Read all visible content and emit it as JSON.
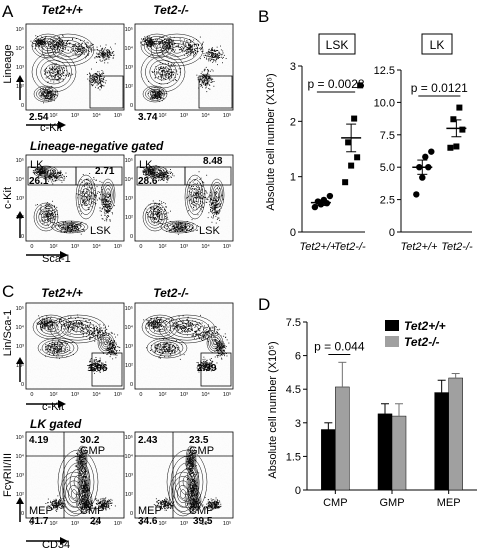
{
  "panels": {
    "a": "A",
    "b": "B",
    "c": "C",
    "d": "D"
  },
  "genotype_wt": "Tet2+/+",
  "genotype_ko": "Tet2-/-",
  "facs_a": {
    "top_ylabel": "Lineage",
    "top_xlabel": "c-Kit",
    "top_pct_wt": "2.54",
    "top_pct_ko": "3.74",
    "subtitle": "Lineage-negative gated",
    "bot_ylabel": "c-Kit",
    "bot_xlabel": "Sca-1",
    "lk_label": "LK",
    "lsk_label": "LSK",
    "lk_pct_wt": "26.1",
    "lsk_pct_wt": "2.71",
    "lk_pct_ko": "28.6",
    "lsk_pct_ko": "8.48"
  },
  "facs_c": {
    "top_ylabel": "Lin/Sca-1",
    "top_xlabel": "c-Kit",
    "top_pct_wt": "1.96",
    "top_pct_ko": "2.39",
    "subtitle": "LK gated",
    "bot_ylabel": "FcγRII/III",
    "bot_xlabel": "CD34",
    "gmp": "GMP",
    "cmp": "CMP",
    "mep": "MEP",
    "wt": {
      "ul": "4.19",
      "ur": "30.2",
      "ll": "41.7",
      "lr": "24"
    },
    "ko": {
      "ul": "2.43",
      "ur": "23.5",
      "ll": "34.6",
      "lr": "39.5"
    }
  },
  "log_ticks": [
    "0",
    "10²",
    "10³",
    "10⁴",
    "10⁵"
  ],
  "chart_data": [
    {
      "type": "scatter",
      "title": "LSK",
      "ylabel": "Absolute cell number (X10⁵)",
      "categories": [
        "Tet2+/+",
        "Tet2-/-"
      ],
      "ylim": [
        0,
        3
      ],
      "yticks": [
        "0",
        "1",
        "2",
        "3"
      ],
      "pvalue": "p = 0.0028",
      "groups": [
        {
          "name": "Tet2+/+",
          "marker": "circle",
          "values": [
            0.45,
            0.5,
            0.52,
            0.55,
            0.58,
            0.65
          ],
          "mean": 0.53,
          "sem": 0.05
        },
        {
          "name": "Tet2-/-",
          "marker": "square",
          "values": [
            0.9,
            1.2,
            1.35,
            1.62,
            2.05,
            2.65
          ],
          "mean": 1.7,
          "sem": 0.25
        }
      ]
    },
    {
      "type": "scatter",
      "title": "LK",
      "ylabel": "",
      "categories": [
        "Tet2+/+",
        "Tet2-/-"
      ],
      "ylim": [
        0,
        12.5
      ],
      "yticks": [
        "0",
        "2.5",
        "5.0",
        "7.5",
        "10.0",
        "12.5"
      ],
      "pvalue": "p = 0.0121",
      "groups": [
        {
          "name": "Tet2+/+",
          "marker": "circle",
          "values": [
            2.9,
            4.2,
            5.0,
            5.0,
            5.8,
            6.2
          ],
          "mean": 5.0,
          "sem": 0.55
        },
        {
          "name": "Tet2-/-",
          "marker": "square",
          "values": [
            6.5,
            6.6,
            7.9,
            8.7,
            9.6
          ],
          "mean": 8.0,
          "sem": 0.65
        }
      ]
    },
    {
      "type": "bar",
      "ylabel": "Absolute cell number (X10⁵)",
      "categories": [
        "CMP",
        "GMP",
        "MEP"
      ],
      "ylim": [
        0,
        7.5
      ],
      "yticks": [
        "0",
        "1.5",
        "3",
        "4.5",
        "6",
        "7.5"
      ],
      "pvalue": "p = 0.044",
      "legend_position": "top-right",
      "series": [
        {
          "name": "Tet2+/+",
          "color": "#000000",
          "values": [
            2.7,
            3.4,
            4.35
          ],
          "errors": [
            0.3,
            0.45,
            0.55
          ]
        },
        {
          "name": "Tet2-/-",
          "color": "#a0a0a0",
          "values": [
            4.6,
            3.3,
            5.0
          ],
          "errors": [
            1.1,
            0.55,
            0.2
          ]
        }
      ]
    }
  ]
}
